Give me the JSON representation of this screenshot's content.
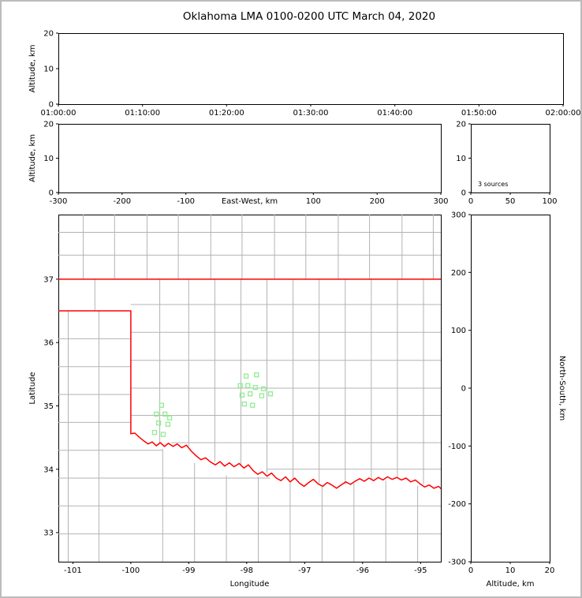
{
  "title": "Oklahoma LMA 0100-0200 UTC March 04, 2020",
  "colors": {
    "state_border": "#ff0000",
    "county_line": "#b3b3b3",
    "station": "#90ee90",
    "axis": "#000000",
    "figure_border": "#bcbcbc"
  },
  "chart_data": [
    {
      "id": "time_height",
      "type": "scatter",
      "title": "",
      "xlabel": "",
      "ylabel": "Altitude, km",
      "xlim": [
        0,
        3600
      ],
      "xtick_values": [
        0,
        600,
        1200,
        1800,
        2400,
        3000,
        3600
      ],
      "xtick_labels": [
        "01:00:00",
        "01:10:00",
        "01:20:00",
        "01:30:00",
        "01:40:00",
        "01:50:00",
        "02:00:00"
      ],
      "ylim": [
        0,
        20
      ],
      "ytick_values": [
        0,
        10,
        20
      ],
      "points": []
    },
    {
      "id": "ew_height",
      "type": "scatter",
      "xlabel": "East-West, km",
      "ylabel": "Altitude, km",
      "xlim": [
        -300,
        300
      ],
      "xtick_values": [
        -300,
        -200,
        -100,
        100,
        200,
        300
      ],
      "ylim": [
        0,
        20
      ],
      "ytick_values": [
        0,
        10,
        20
      ],
      "points": []
    },
    {
      "id": "alt_histogram",
      "type": "line",
      "annotation": "3 sources",
      "xlim": [
        0,
        100
      ],
      "xtick_values": [
        0,
        50,
        100
      ],
      "ylim": [
        0,
        20
      ],
      "ytick_values": [
        0,
        10,
        20
      ],
      "points": []
    },
    {
      "id": "plan_map",
      "type": "scatter",
      "xlabel": "Longitude",
      "ylabel": "Latitude",
      "xlim": [
        -101.25,
        -94.65
      ],
      "xtick_values": [
        -101,
        -100,
        -99,
        -98,
        -97,
        -96,
        -95
      ],
      "ylim": [
        32.54,
        38.02
      ],
      "ytick_values": [
        33,
        34,
        35,
        36,
        37
      ],
      "stations": [
        [
          -99.47,
          35.01
        ],
        [
          -99.56,
          34.87
        ],
        [
          -99.41,
          34.87
        ],
        [
          -99.52,
          34.73
        ],
        [
          -99.36,
          34.71
        ],
        [
          -99.59,
          34.58
        ],
        [
          -99.44,
          34.55
        ],
        [
          -99.33,
          34.81
        ],
        [
          -98.01,
          35.47
        ],
        [
          -97.83,
          35.49
        ],
        [
          -98.11,
          35.32
        ],
        [
          -97.98,
          35.32
        ],
        [
          -97.85,
          35.29
        ],
        [
          -97.71,
          35.27
        ],
        [
          -98.08,
          35.17
        ],
        [
          -97.94,
          35.19
        ],
        [
          -97.74,
          35.16
        ],
        [
          -97.59,
          35.19
        ],
        [
          -98.04,
          35.03
        ],
        [
          -97.9,
          35.01
        ]
      ],
      "state_border": [
        [
          [
            -101.25,
            37.0
          ],
          [
            -94.65,
            37.0
          ]
        ],
        [
          [
            -101.25,
            36.5
          ],
          [
            -100.0,
            36.5
          ],
          [
            -100.0,
            34.56
          ]
        ],
        [
          [
            -100.0,
            34.56
          ],
          [
            -99.93,
            34.57
          ],
          [
            -99.86,
            34.51
          ],
          [
            -99.78,
            34.45
          ],
          [
            -99.7,
            34.4
          ],
          [
            -99.63,
            34.43
          ],
          [
            -99.56,
            34.37
          ],
          [
            -99.49,
            34.42
          ],
          [
            -99.42,
            34.36
          ],
          [
            -99.35,
            34.41
          ],
          [
            -99.27,
            34.36
          ],
          [
            -99.2,
            34.4
          ],
          [
            -99.12,
            34.34
          ],
          [
            -99.04,
            34.38
          ],
          [
            -98.96,
            34.29
          ],
          [
            -98.87,
            34.21
          ],
          [
            -98.79,
            34.15
          ],
          [
            -98.71,
            34.18
          ],
          [
            -98.62,
            34.11
          ],
          [
            -98.54,
            34.07
          ],
          [
            -98.46,
            34.12
          ],
          [
            -98.38,
            34.05
          ],
          [
            -98.3,
            34.1
          ],
          [
            -98.22,
            34.04
          ],
          [
            -98.13,
            34.09
          ],
          [
            -98.05,
            34.02
          ],
          [
            -97.97,
            34.07
          ],
          [
            -97.89,
            33.98
          ],
          [
            -97.81,
            33.92
          ],
          [
            -97.73,
            33.96
          ],
          [
            -97.65,
            33.89
          ],
          [
            -97.57,
            33.94
          ],
          [
            -97.49,
            33.86
          ],
          [
            -97.41,
            33.82
          ],
          [
            -97.33,
            33.88
          ],
          [
            -97.25,
            33.8
          ],
          [
            -97.17,
            33.86
          ],
          [
            -97.09,
            33.78
          ],
          [
            -97.01,
            33.73
          ],
          [
            -96.93,
            33.79
          ],
          [
            -96.85,
            33.84
          ],
          [
            -96.77,
            33.77
          ],
          [
            -96.69,
            33.73
          ],
          [
            -96.61,
            33.79
          ],
          [
            -96.53,
            33.75
          ],
          [
            -96.45,
            33.7
          ],
          [
            -96.37,
            33.75
          ],
          [
            -96.29,
            33.8
          ],
          [
            -96.21,
            33.76
          ],
          [
            -96.13,
            33.81
          ],
          [
            -96.05,
            33.85
          ],
          [
            -95.97,
            33.81
          ],
          [
            -95.89,
            33.86
          ],
          [
            -95.81,
            33.82
          ],
          [
            -95.73,
            33.87
          ],
          [
            -95.65,
            33.83
          ],
          [
            -95.57,
            33.88
          ],
          [
            -95.49,
            33.84
          ],
          [
            -95.41,
            33.87
          ],
          [
            -95.33,
            33.83
          ],
          [
            -95.25,
            33.86
          ],
          [
            -95.17,
            33.8
          ],
          [
            -95.09,
            33.83
          ],
          [
            -95.01,
            33.77
          ],
          [
            -94.93,
            33.72
          ],
          [
            -94.85,
            33.75
          ],
          [
            -94.77,
            33.7
          ],
          [
            -94.69,
            33.73
          ],
          [
            -94.63,
            33.68
          ]
        ]
      ],
      "county_lines": [
        [
          -100.82,
          37,
          -100.82,
          38.02
        ],
        [
          -100.28,
          37,
          -100.28,
          38.02
        ],
        [
          -99.72,
          37,
          -99.72,
          38.02
        ],
        [
          -99.18,
          37,
          -99.18,
          38.02
        ],
        [
          -98.62,
          37,
          -98.62,
          38.02
        ],
        [
          -98.08,
          37,
          -98.08,
          38.02
        ],
        [
          -97.52,
          37,
          -97.52,
          38.02
        ],
        [
          -96.98,
          37,
          -96.98,
          38.02
        ],
        [
          -96.42,
          37,
          -96.42,
          38.02
        ],
        [
          -95.88,
          37,
          -95.88,
          38.02
        ],
        [
          -95.32,
          37,
          -95.32,
          38.02
        ],
        [
          -94.78,
          37,
          -94.78,
          38.02
        ],
        [
          -101.25,
          37.38,
          -94.65,
          37.38
        ],
        [
          -101.25,
          37.74,
          -94.65,
          37.74
        ],
        [
          -100.62,
          36.5,
          -100.62,
          37
        ],
        [
          -100.55,
          32.54,
          -100.55,
          36.5
        ],
        [
          -101.08,
          32.54,
          -101.08,
          36.5
        ],
        [
          -101.25,
          36.06,
          -100,
          36.06
        ],
        [
          -101.25,
          35.62,
          -100,
          35.62
        ],
        [
          -101.25,
          35.18,
          -100,
          35.18
        ],
        [
          -101.25,
          34.74,
          -100,
          34.74
        ],
        [
          -101.25,
          34.3,
          -99.45,
          34.3
        ],
        [
          -101.25,
          33.86,
          -97.6,
          33.86
        ],
        [
          -101.25,
          33.42,
          -94.65,
          33.42
        ],
        [
          -101.25,
          32.98,
          -94.65,
          32.98
        ],
        [
          -99.45,
          32.54,
          -99.45,
          34.32
        ],
        [
          -98.9,
          32.54,
          -98.9,
          34.1
        ],
        [
          -98.35,
          32.54,
          -98.35,
          33.9
        ],
        [
          -97.8,
          32.54,
          -97.8,
          33.88
        ],
        [
          -97.25,
          32.54,
          -97.25,
          33.8
        ],
        [
          -96.7,
          32.54,
          -96.7,
          33.72
        ],
        [
          -96.15,
          32.54,
          -96.15,
          33.78
        ],
        [
          -95.6,
          32.54,
          -95.6,
          33.82
        ],
        [
          -95.05,
          32.54,
          -95.05,
          33.74
        ],
        [
          -99.5,
          37,
          -99.5,
          34.42
        ],
        [
          -99.0,
          37,
          -99.0,
          34.36
        ],
        [
          -98.55,
          37,
          -98.55,
          34.12
        ],
        [
          -98.1,
          37,
          -98.1,
          34.05
        ],
        [
          -97.65,
          37,
          -97.65,
          33.94
        ],
        [
          -97.2,
          37,
          -97.2,
          33.84
        ],
        [
          -96.75,
          37,
          -96.75,
          33.78
        ],
        [
          -96.3,
          37,
          -96.3,
          33.76
        ],
        [
          -95.85,
          37,
          -95.85,
          33.84
        ],
        [
          -95.4,
          37,
          -95.4,
          33.86
        ],
        [
          -94.95,
          37,
          -94.95,
          33.76
        ],
        [
          -100,
          36.6,
          -94.65,
          36.6
        ],
        [
          -100,
          36.16,
          -94.65,
          36.16
        ],
        [
          -100,
          35.72,
          -94.65,
          35.72
        ],
        [
          -100,
          35.28,
          -94.65,
          35.28
        ],
        [
          -100,
          34.85,
          -94.65,
          34.85
        ],
        [
          -99.3,
          34.42,
          -94.65,
          34.42
        ],
        [
          -97.65,
          34.0,
          -94.65,
          34.0
        ]
      ]
    },
    {
      "id": "ns_height",
      "type": "scatter",
      "xlabel": "Altitude, km",
      "ylabel": "North-South, km",
      "xlim": [
        0,
        20
      ],
      "xtick_values": [
        0,
        10,
        20
      ],
      "ylim": [
        -300,
        300
      ],
      "ytick_values": [
        300,
        200,
        100,
        0,
        -100,
        -200,
        -300
      ],
      "points": []
    }
  ]
}
